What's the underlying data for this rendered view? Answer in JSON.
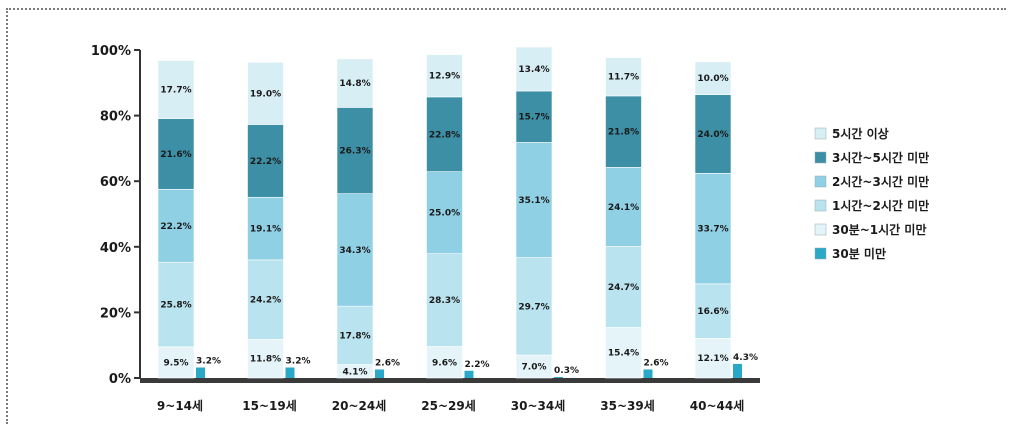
{
  "chart_data": {
    "type": "bar",
    "stacked": true,
    "categories": [
      "9~14세",
      "15~19세",
      "20~24세",
      "25~29세",
      "30~34세",
      "35~39세",
      "40~44세"
    ],
    "series": [
      {
        "name": "30분 미만",
        "values": [
          3.2,
          3.2,
          2.6,
          2.2,
          0.3,
          2.6,
          4.3
        ],
        "labels": [
          "3.2%",
          "3.2%",
          "2.6%",
          "2.2%",
          "0.3%",
          "2.6%",
          "4.3%"
        ],
        "color": "#2aa8c8"
      },
      {
        "name": "30분~1시간 미만",
        "values": [
          9.5,
          11.8,
          4.1,
          9.6,
          7.0,
          15.4,
          12.1
        ],
        "labels": [
          "9.5%",
          "11.8%",
          "4.1%",
          "9.6%",
          "7.0%",
          "15.4%",
          "12.1%"
        ],
        "color": "#e4f4f9"
      },
      {
        "name": "1시간~2시간 미만",
        "values": [
          25.8,
          24.2,
          17.8,
          28.3,
          29.7,
          24.7,
          16.6
        ],
        "labels": [
          "25.8%",
          "24.2%",
          "17.8%",
          "28.3%",
          "29.7%",
          "24.7%",
          "16.6%"
        ],
        "color": "#b9e3ef"
      },
      {
        "name": "2시간~3시간 미만",
        "values": [
          22.2,
          19.1,
          34.3,
          25.0,
          35.1,
          24.1,
          33.7
        ],
        "labels": [
          "22.2%",
          "19.1%",
          "34.3%",
          "25.0%",
          "35.1%",
          "24.1%",
          "33.7%"
        ],
        "color": "#8fd0e4"
      },
      {
        "name": "3시간~5시간 미만",
        "values": [
          21.6,
          22.2,
          26.3,
          22.8,
          15.7,
          21.8,
          24.0
        ],
        "labels": [
          "21.6%",
          "22.2%",
          "26.3%",
          "22.8%",
          "15.7%",
          "21.8%",
          "24.0%"
        ],
        "color": "#3d8fa6"
      },
      {
        "name": "5시간 이상",
        "values": [
          17.7,
          19.0,
          14.8,
          12.9,
          13.4,
          11.7,
          10.0
        ],
        "labels": [
          "17.7%",
          "19.0%",
          "14.8%",
          "12.9%",
          "13.4%",
          "11.7%",
          "10.0%"
        ],
        "color": "#d7eef5"
      }
    ],
    "legend_order": [
      "5시간 이상",
      "3시간~5시간 미만",
      "2시간~3시간 미만",
      "1시간~2시간 미만",
      "30분~1시간 미만",
      "30분 미만"
    ],
    "yticks": [
      "0%",
      "20%",
      "40%",
      "60%",
      "80%",
      "100%"
    ],
    "ylim": [
      0,
      100
    ],
    "legend_position": "right"
  }
}
